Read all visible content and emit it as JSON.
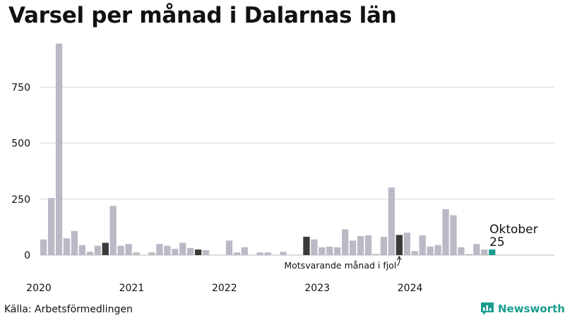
{
  "chart_data": {
    "type": "bar",
    "title": "Varsel per månad i Dalarnas län",
    "ylim": [
      0,
      950
    ],
    "y_ticks": [
      0,
      250,
      500,
      750
    ],
    "x_tick_labels": [
      {
        "label": "2020",
        "index": 0
      },
      {
        "label": "2021",
        "index": 12
      },
      {
        "label": "2022",
        "index": 24
      },
      {
        "label": "2023",
        "index": 36
      },
      {
        "label": "2024",
        "index": 48
      }
    ],
    "grid": true,
    "values": [
      70,
      255,
      945,
      75,
      108,
      45,
      15,
      42,
      55,
      220,
      42,
      50,
      12,
      0,
      12,
      50,
      42,
      28,
      55,
      32,
      25,
      22,
      0,
      0,
      65,
      12,
      35,
      0,
      12,
      12,
      0,
      15,
      0,
      0,
      82,
      70,
      35,
      38,
      35,
      115,
      65,
      85,
      88,
      5,
      82,
      302,
      90,
      100,
      18,
      88,
      38,
      45,
      205,
      178,
      35,
      5,
      50,
      25,
      25
    ],
    "highlight_indices": [
      8,
      20,
      34,
      46
    ],
    "current_index": 58,
    "colors": {
      "normal": "#bbb9c6",
      "highlight": "#3a3a3a",
      "current": "#1a9d8f",
      "grid": "#d9d9d9"
    },
    "annotations": {
      "current_label": "Oktober",
      "current_value": "25",
      "same_month_last_year": "Motsvarande månad i fjol"
    }
  },
  "source": "Källa: Arbetsförmedlingen",
  "brand": {
    "name": "Newsworthy",
    "icon": "newsworthy-logo-icon"
  }
}
